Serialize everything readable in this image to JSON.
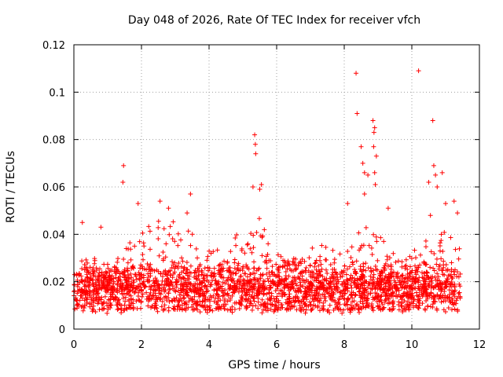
{
  "chart_data": {
    "type": "scatter",
    "title": "Day 048 of 2026, Rate Of TEC Index for receiver vfch",
    "xlabel": "GPS time / hours",
    "ylabel": "ROTI / TECUs",
    "xlim": [
      0,
      12
    ],
    "ylim": [
      0,
      0.12
    ],
    "xticks": [
      0,
      2,
      4,
      6,
      8,
      10,
      12
    ],
    "yticks": [
      0,
      0.02,
      0.04,
      0.06,
      0.08,
      0.1,
      0.12
    ],
    "xtick_labels": [
      "0",
      "2",
      "4",
      "6",
      "8",
      "10",
      "12"
    ],
    "ytick_labels": [
      "0",
      "0.02",
      "0.04",
      "0.06",
      "0.08",
      "0.1",
      "0.12"
    ],
    "grid": true,
    "marker": "+",
    "marker_color": "#ff0000",
    "data_range": [
      0,
      11.45
    ],
    "series": [
      {
        "name": "ROTI",
        "note": "dense scatter, bulk values 0.005-0.03",
        "band_profile": {
          "x": [
            0,
            0.5,
            1,
            1.5,
            2,
            2.5,
            3,
            3.5,
            4,
            4.5,
            5,
            5.5,
            6,
            6.5,
            7,
            7.5,
            8,
            8.5,
            9,
            9.5,
            10,
            10.5,
            11,
            11.45
          ],
          "upper": [
            0.028,
            0.03,
            0.034,
            0.037,
            0.042,
            0.046,
            0.047,
            0.045,
            0.034,
            0.033,
            0.045,
            0.05,
            0.032,
            0.03,
            0.036,
            0.035,
            0.032,
            0.045,
            0.04,
            0.032,
            0.033,
            0.04,
            0.045,
            0.05
          ]
        },
        "outliers": [
          {
            "x": 0.25,
            "y": 0.045
          },
          {
            "x": 0.8,
            "y": 0.043
          },
          {
            "x": 1.47,
            "y": 0.069
          },
          {
            "x": 1.45,
            "y": 0.062
          },
          {
            "x": 1.9,
            "y": 0.053
          },
          {
            "x": 2.55,
            "y": 0.054
          },
          {
            "x": 2.8,
            "y": 0.051
          },
          {
            "x": 3.35,
            "y": 0.049
          },
          {
            "x": 3.45,
            "y": 0.057
          },
          {
            "x": 5.35,
            "y": 0.082
          },
          {
            "x": 5.37,
            "y": 0.078
          },
          {
            "x": 5.38,
            "y": 0.074
          },
          {
            "x": 5.3,
            "y": 0.06
          },
          {
            "x": 5.55,
            "y": 0.061
          },
          {
            "x": 5.5,
            "y": 0.059
          },
          {
            "x": 8.35,
            "y": 0.108
          },
          {
            "x": 8.38,
            "y": 0.091
          },
          {
            "x": 8.5,
            "y": 0.077
          },
          {
            "x": 8.55,
            "y": 0.07
          },
          {
            "x": 8.6,
            "y": 0.066
          },
          {
            "x": 8.7,
            "y": 0.065
          },
          {
            "x": 8.85,
            "y": 0.088
          },
          {
            "x": 8.9,
            "y": 0.085
          },
          {
            "x": 8.88,
            "y": 0.083
          },
          {
            "x": 8.87,
            "y": 0.077
          },
          {
            "x": 8.95,
            "y": 0.073
          },
          {
            "x": 8.9,
            "y": 0.066
          },
          {
            "x": 8.92,
            "y": 0.061
          },
          {
            "x": 8.6,
            "y": 0.057
          },
          {
            "x": 8.1,
            "y": 0.053
          },
          {
            "x": 9.3,
            "y": 0.051
          },
          {
            "x": 10.2,
            "y": 0.109
          },
          {
            "x": 10.62,
            "y": 0.088
          },
          {
            "x": 10.65,
            "y": 0.069
          },
          {
            "x": 10.7,
            "y": 0.065
          },
          {
            "x": 10.9,
            "y": 0.066
          },
          {
            "x": 10.5,
            "y": 0.062
          },
          {
            "x": 10.75,
            "y": 0.06
          },
          {
            "x": 11.0,
            "y": 0.053
          },
          {
            "x": 11.25,
            "y": 0.054
          },
          {
            "x": 11.35,
            "y": 0.049
          },
          {
            "x": 10.55,
            "y": 0.048
          }
        ]
      }
    ]
  }
}
